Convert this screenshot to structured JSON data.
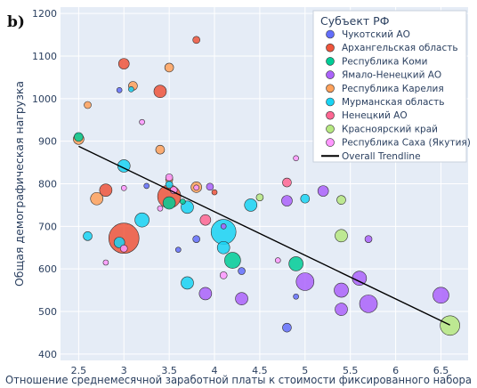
{
  "panel_label": "b)",
  "colors": {
    "plot_bg": "#e5ecf6",
    "grid": "#ffffff",
    "trend": "#000000"
  },
  "chart_data": {
    "type": "scatter",
    "title": "",
    "xlabel": "Отношение среднемесячной заработной платы к стоимости фиксированного набора",
    "ylabel": "Общая демографическая нагрузка",
    "xlim": [
      2.3,
      6.8
    ],
    "ylim": [
      385,
      1215
    ],
    "x_ticks": [
      "2.5",
      "3",
      "3.5",
      "4",
      "4.5",
      "5",
      "5.5",
      "6",
      "6.5"
    ],
    "y_ticks": [
      "400",
      "500",
      "600",
      "700",
      "800",
      "900",
      "1000",
      "1100",
      "1200"
    ],
    "grid": true,
    "legend_title": "Субъект РФ",
    "legend_position": "top-right",
    "trendline": {
      "name": "Overall Trendline",
      "x": [
        2.5,
        6.6
      ],
      "y": [
        888,
        468
      ]
    },
    "series": [
      {
        "name": "Чукотский АО",
        "color": "#636efa",
        "points": [
          [
            2.95,
            1020,
            3
          ],
          [
            3.25,
            795,
            3
          ],
          [
            3.6,
            645,
            3
          ],
          [
            3.8,
            670,
            4
          ],
          [
            4.3,
            595,
            4
          ],
          [
            4.8,
            462,
            5
          ],
          [
            4.9,
            535,
            3
          ]
        ]
      },
      {
        "name": "Архангельская область",
        "color": "#ef553b",
        "points": [
          [
            3.0,
            1082,
            6
          ],
          [
            3.4,
            1017,
            7
          ],
          [
            3.8,
            1138,
            4
          ],
          [
            2.8,
            785,
            7
          ],
          [
            3.5,
            770,
            13
          ],
          [
            3.0,
            672,
            17
          ],
          [
            4.0,
            780,
            3
          ]
        ]
      },
      {
        "name": "Республика Коми",
        "color": "#00cc96",
        "points": [
          [
            2.5,
            910,
            5
          ],
          [
            3.5,
            755,
            7
          ],
          [
            4.2,
            620,
            9
          ],
          [
            4.9,
            612,
            8
          ],
          [
            3.65,
            758,
            3
          ]
        ]
      },
      {
        "name": "Ямало-Ненецкий АО",
        "color": "#ab63fa",
        "points": [
          [
            3.9,
            542,
            7
          ],
          [
            4.3,
            530,
            7
          ],
          [
            5.0,
            570,
            10
          ],
          [
            5.4,
            550,
            8
          ],
          [
            5.6,
            578,
            8
          ],
          [
            5.7,
            518,
            10
          ],
          [
            5.4,
            505,
            7
          ],
          [
            6.5,
            538,
            9
          ],
          [
            4.8,
            760,
            6
          ],
          [
            5.2,
            783,
            6
          ],
          [
            3.95,
            793,
            4
          ],
          [
            5.7,
            670,
            4
          ],
          [
            4.1,
            700,
            3
          ]
        ]
      },
      {
        "name": "Республика Карелия",
        "color": "#ffa15a",
        "points": [
          [
            2.5,
            905,
            6
          ],
          [
            2.6,
            985,
            4
          ],
          [
            3.1,
            1030,
            5
          ],
          [
            3.5,
            1073,
            5
          ],
          [
            3.4,
            880,
            5
          ],
          [
            2.7,
            765,
            7
          ],
          [
            3.8,
            792,
            6
          ],
          [
            3.5,
            810,
            4
          ]
        ]
      },
      {
        "name": "Мурманская область",
        "color": "#19d3f3",
        "points": [
          [
            3.0,
            842,
            7
          ],
          [
            3.2,
            715,
            8
          ],
          [
            3.7,
            745,
            7
          ],
          [
            4.1,
            687,
            14
          ],
          [
            4.4,
            750,
            7
          ],
          [
            3.7,
            567,
            7
          ],
          [
            4.1,
            650,
            7
          ],
          [
            5.0,
            765,
            5
          ],
          [
            2.6,
            677,
            5
          ],
          [
            2.95,
            662,
            6
          ],
          [
            3.08,
            1022,
            3
          ],
          [
            3.5,
            798,
            4
          ]
        ]
      },
      {
        "name": "Ненецкий АО",
        "color": "#ff6692",
        "points": [
          [
            3.9,
            715,
            6
          ],
          [
            4.8,
            803,
            5
          ]
        ]
      },
      {
        "name": "Красноярский край",
        "color": "#b6e880",
        "points": [
          [
            6.6,
            467,
            11
          ],
          [
            5.4,
            762,
            5
          ],
          [
            5.4,
            678,
            7
          ],
          [
            4.5,
            768,
            4
          ]
        ]
      },
      {
        "name": "Республика Саха (Якутия)",
        "color": "#ff97ff",
        "points": [
          [
            2.8,
            615,
            3
          ],
          [
            3.0,
            790,
            3
          ],
          [
            3.2,
            945,
            3
          ],
          [
            3.5,
            815,
            4
          ],
          [
            3.55,
            785,
            4
          ],
          [
            3.4,
            742,
            3
          ],
          [
            3.0,
            648,
            4
          ],
          [
            4.1,
            585,
            4
          ],
          [
            4.7,
            620,
            3
          ],
          [
            4.9,
            860,
            3
          ],
          [
            3.8,
            791,
            3
          ]
        ]
      }
    ]
  }
}
